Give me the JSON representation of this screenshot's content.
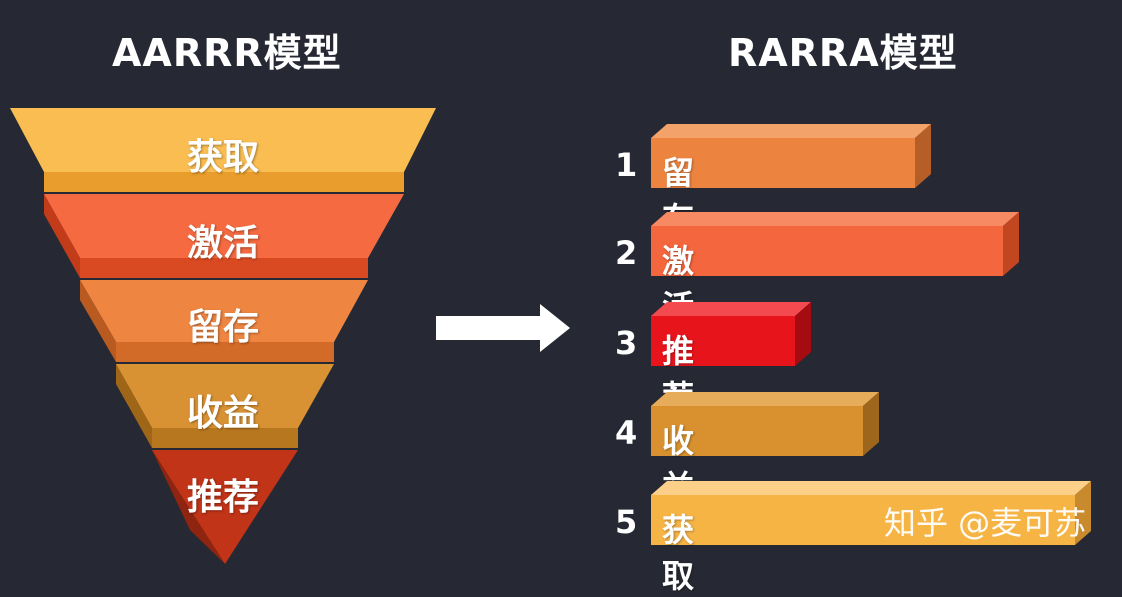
{
  "left": {
    "title": "AARRR模型",
    "stages": [
      {
        "label": "获取",
        "color": "#f6b445"
      },
      {
        "label": "激活",
        "color": "#f4663d"
      },
      {
        "label": "留存",
        "color": "#ec8440"
      },
      {
        "label": "收益",
        "color": "#d8912e"
      },
      {
        "label": "推荐",
        "color": "#c03218"
      }
    ]
  },
  "right": {
    "title": "RARRA模型",
    "stages": [
      {
        "number": "1",
        "label": "留存",
        "color": "#ec8440"
      },
      {
        "number": "2",
        "label": "激活",
        "color": "#f4663d"
      },
      {
        "number": "3",
        "label": "推荐",
        "color": "#e8141c"
      },
      {
        "number": "4",
        "label": "收益",
        "color": "#d8912e"
      },
      {
        "number": "5",
        "label": "获取",
        "color": "#f6b445"
      }
    ]
  },
  "watermark": "知乎 @麦可苏"
}
